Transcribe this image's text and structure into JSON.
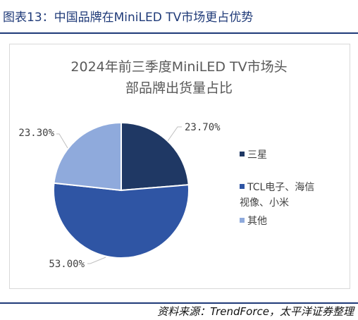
{
  "header": {
    "figure_title": "图表13：中国品牌在MiniLED TV市场更占优势"
  },
  "chart_data": {
    "type": "pie",
    "title_line1": "2024年前三季度MiniLED TV市场头",
    "title_line2": "部品牌出货量占比",
    "slices": [
      {
        "name": "三星",
        "value": 23.7,
        "label": "23.70%",
        "color": "#1f3864"
      },
      {
        "name": "TCL电子、海信视像、小米",
        "value": 53.0,
        "label": "53.00%",
        "color": "#2f55a4"
      },
      {
        "name": "其他",
        "value": 23.3,
        "label": "23.30%",
        "color": "#8faadc"
      }
    ],
    "legend": {
      "placement": "right",
      "entries": [
        {
          "lines": [
            "三星"
          ],
          "color": "#1f3864"
        },
        {
          "lines": [
            "TCL电子、海信",
            "视像、小米"
          ],
          "color": "#2f55a4"
        },
        {
          "lines": [
            "其他"
          ],
          "color": "#8faadc"
        }
      ]
    }
  },
  "footer": {
    "source": "资料来源：TrendForce，太平洋证券整理"
  }
}
